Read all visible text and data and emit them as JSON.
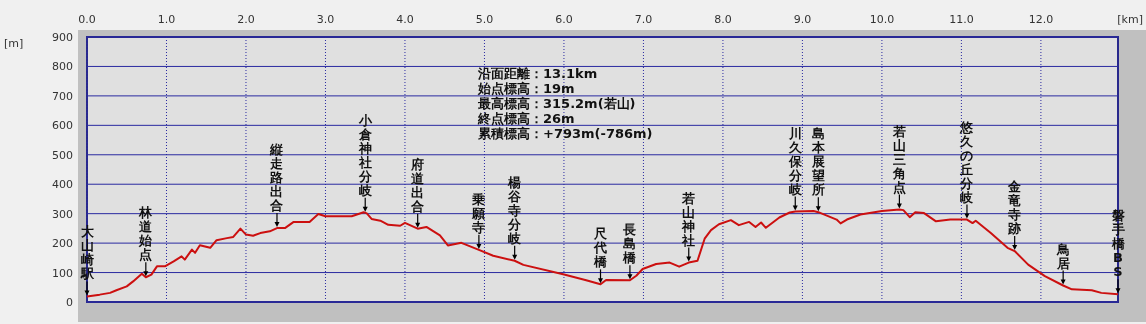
{
  "chart_data": {
    "type": "line",
    "xlabel": "[km]",
    "ylabel": "[m]",
    "x": [
      0,
      0.16,
      0.29,
      0.37,
      0.5,
      0.58,
      0.69,
      0.74,
      0.81,
      0.88,
      0.98,
      1.09,
      1.19,
      1.23,
      1.32,
      1.36,
      1.42,
      1.55,
      1.63,
      1.76,
      1.84,
      1.93,
      2.0,
      2.09,
      2.18,
      2.3,
      2.39,
      2.49,
      2.6,
      2.8,
      2.91,
      3.0,
      3.33,
      3.48,
      3.52,
      3.58,
      3.69,
      3.79,
      3.94,
      4.0,
      4.16,
      4.27,
      4.44,
      4.54,
      4.71,
      4.93,
      5.11,
      5.38,
      5.49,
      5.99,
      6.28,
      6.46,
      6.53,
      6.83,
      6.91,
      6.99,
      7.16,
      7.33,
      7.45,
      7.57,
      7.68,
      7.77,
      7.85,
      7.95,
      8.1,
      8.2,
      8.33,
      8.41,
      8.48,
      8.54,
      8.71,
      8.84,
      8.91,
      9.14,
      9.2,
      9.43,
      9.48,
      9.56,
      9.73,
      10.0,
      10.22,
      10.27,
      10.35,
      10.42,
      10.53,
      10.68,
      10.86,
      11.07,
      11.14,
      11.18,
      11.37,
      11.58,
      11.67,
      11.84,
      12.05,
      12.28,
      12.39,
      12.64,
      12.76,
      12.97
    ],
    "series": [
      {
        "color": "#cc1010",
        "values": [
          19,
          25,
          31,
          40,
          53,
          70,
          96,
          84,
          93,
          121,
          121,
          138,
          155,
          144,
          178,
          167,
          193,
          184,
          210,
          217,
          221,
          249,
          229,
          225,
          234,
          240,
          251,
          251,
          272,
          272,
          299,
          291,
          291,
          305,
          301,
          282,
          276,
          262,
          259,
          269,
          249,
          255,
          226,
          192,
          201,
          177,
          157,
          140,
          126,
          94,
          74,
          60,
          75,
          74,
          89,
          112,
          129,
          134,
          120,
          134,
          140,
          215,
          244,
          264,
          278,
          261,
          272,
          255,
          270,
          252,
          287,
          304,
          307,
          309,
          305,
          280,
          267,
          280,
          297,
          309,
          314,
          312,
          288,
          305,
          302,
          274,
          280,
          280,
          268,
          276,
          234,
          184,
          173,
          127,
          88,
          56,
          43,
          40,
          31,
          26
        ]
      }
    ],
    "xlim": [
      0,
      12.97
    ],
    "xticks": [
      {
        "value": 0,
        "label": "0.0"
      },
      {
        "value": 1,
        "label": "1.0"
      },
      {
        "value": 2,
        "label": "2.0"
      },
      {
        "value": 3,
        "label": "3.0"
      },
      {
        "value": 4,
        "label": "4.0"
      },
      {
        "value": 5,
        "label": "5.0"
      },
      {
        "value": 6,
        "label": "6.0"
      },
      {
        "value": 7,
        "label": "7.0"
      },
      {
        "value": 8,
        "label": "8.0"
      },
      {
        "value": 9,
        "label": "9.0"
      },
      {
        "value": 10,
        "label": "10.0"
      },
      {
        "value": 11,
        "label": "11.0"
      },
      {
        "value": 12,
        "label": "12.0"
      }
    ],
    "ylim": [
      0,
      900
    ],
    "yticks": [
      0,
      100,
      200,
      300,
      400,
      500,
      600,
      700,
      800,
      900
    ],
    "grid": true,
    "annotations": [
      "沿面距離：13.1km",
      "始点標高：19m",
      "最高標高：315.2m(若山)",
      "終点標高：26m",
      "累積標高：+793m(-786m)",
      {
        "text": "大山崎駅",
        "x": 0,
        "y": 19
      },
      {
        "text": "林道始点",
        "x": 0.74,
        "y": 84
      },
      {
        "text": "縦走路出合",
        "x": 2.39,
        "y": 251
      },
      {
        "text": "小倉神社分岐",
        "x": 3.5,
        "y": 303
      },
      {
        "text": "府道出合",
        "x": 4.16,
        "y": 249
      },
      {
        "text": "乗願寺",
        "x": 4.93,
        "y": 177
      },
      {
        "text": "楊谷寺分岐",
        "x": 5.38,
        "y": 140
      },
      {
        "text": "尺代橋",
        "x": 6.46,
        "y": 60
      },
      {
        "text": "長島橋",
        "x": 6.83,
        "y": 74
      },
      {
        "text": "若山神社",
        "x": 7.57,
        "y": 134
      },
      {
        "text": "川久保分岐",
        "x": 8.91,
        "y": 307
      },
      {
        "text": "島本展望所",
        "x": 9.2,
        "y": 305
      },
      {
        "text": "若山三角点",
        "x": 10.22,
        "y": 314
      },
      {
        "text": "悠久の丘分岐",
        "x": 11.07,
        "y": 280
      },
      {
        "text": "金竜寺跡",
        "x": 11.67,
        "y": 173
      },
      {
        "text": "鳥居",
        "x": 12.28,
        "y": 56
      },
      {
        "text": "磐手橋BS",
        "x": 12.97,
        "y": 26
      }
    ]
  }
}
